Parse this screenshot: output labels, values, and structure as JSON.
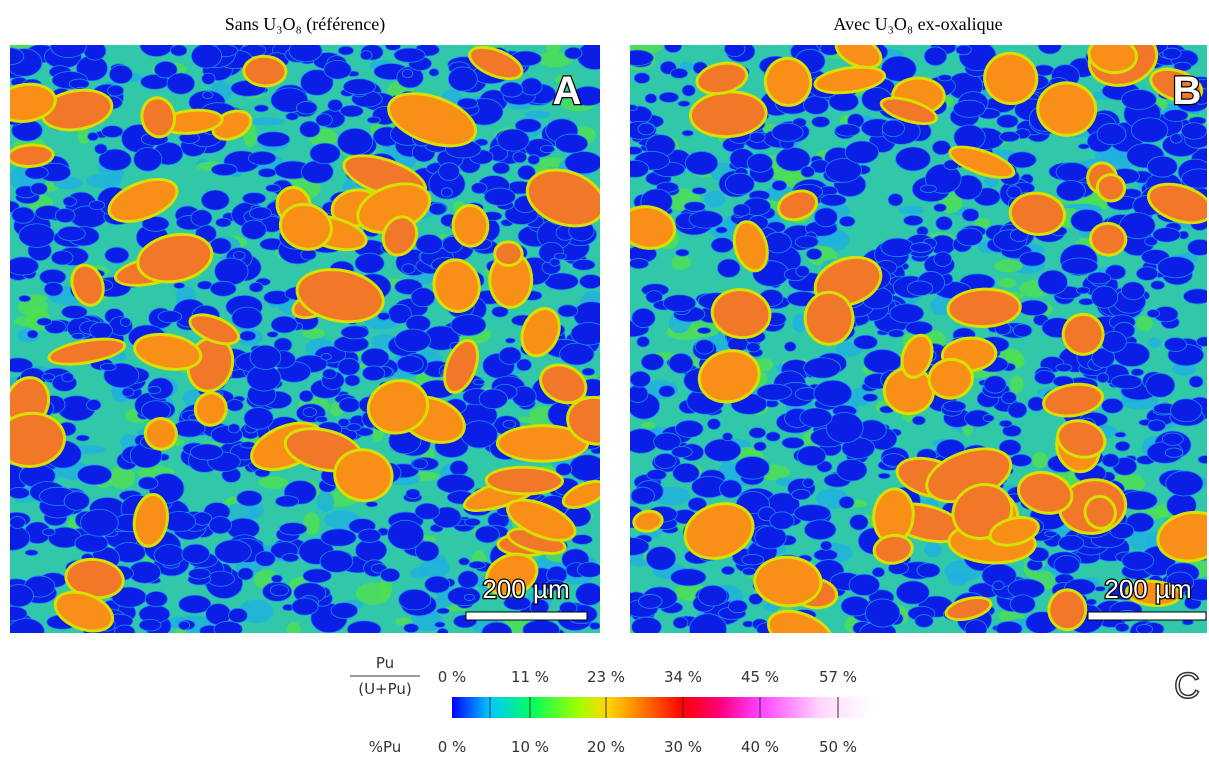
{
  "panels": [
    {
      "title": "Sans U₃O₈ (référence)",
      "letter": "A",
      "scale_bar": "200 µm"
    },
    {
      "title": "Avec U₃O₈ ex-oxalique",
      "letter": "B",
      "scale_bar": "200 µm"
    }
  ],
  "colorbar": {
    "letter": "C",
    "fraction_numerator": "Pu",
    "fraction_denominator": "(U+Pu)",
    "top_labels": [
      "0 %",
      "11 %",
      "23 %",
      "34 %",
      "45 %",
      "57 %"
    ],
    "bottom_title": "%Pu",
    "bottom_labels": [
      "0 %",
      "10 %",
      "20 %",
      "30 %",
      "40 %",
      "50 %"
    ]
  }
}
